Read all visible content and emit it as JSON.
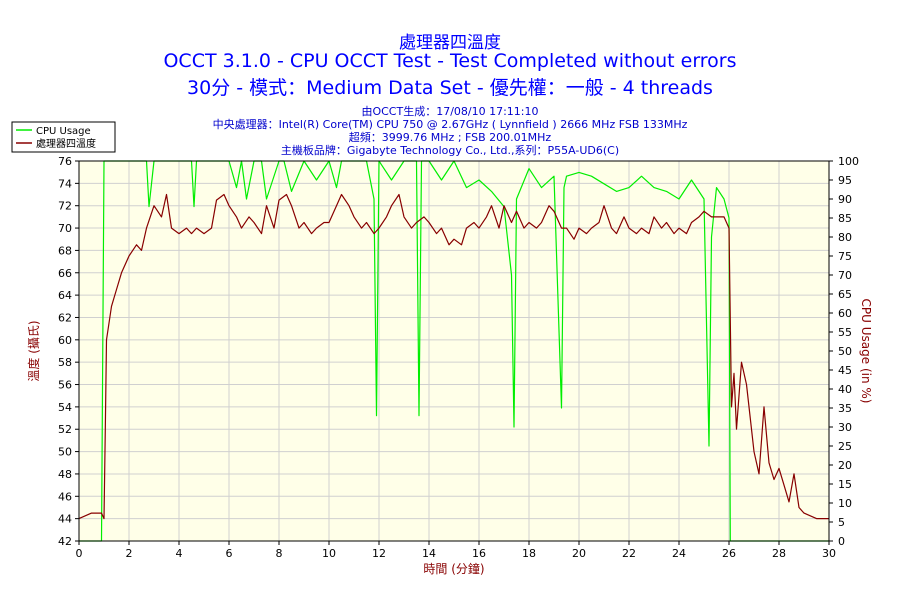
{
  "header": {
    "title1": "處理器四溫度",
    "title2": "OCCT 3.1.0 - CPU OCCT Test - Test Completed without errors",
    "title3": "30分 - 模式：Medium Data Set - 優先權：一般 - 4 threads",
    "meta": [
      "由OCCT生成：17/08/10 17:11:10",
      "中央處理器：Intel(R) Core(TM) CPU 750 @ 2.67GHz ( Lynnfield ) 2666 MHz FSB 133MHz",
      "超頻：3999.76 MHz ; FSB 200.01MHz",
      "主機板品牌：Gigabyte Technology Co., Ltd.,系列：P55A-UD6(C)"
    ]
  },
  "colors": {
    "cpu_usage": "#00ee00",
    "temperature": "#880000",
    "plot_bg": "#ffffe8",
    "grid": "#d0d0d0"
  },
  "chart_data": {
    "type": "line",
    "xlabel": "時間 (分鐘)",
    "ylabel": "溫度 (攝氏)",
    "y2label": "CPU Usage (in %)",
    "xlim": [
      0,
      30
    ],
    "ylim": [
      42,
      76
    ],
    "y2lim": [
      0,
      100
    ],
    "xticks": [
      0,
      2,
      4,
      6,
      8,
      10,
      12,
      14,
      16,
      18,
      20,
      22,
      24,
      26,
      28,
      30
    ],
    "yticks": [
      42,
      44,
      46,
      48,
      50,
      52,
      54,
      56,
      58,
      60,
      62,
      64,
      66,
      68,
      70,
      72,
      74,
      76
    ],
    "y2ticks": [
      0,
      5,
      10,
      15,
      20,
      25,
      30,
      35,
      40,
      45,
      50,
      55,
      60,
      65,
      70,
      75,
      80,
      85,
      90,
      95,
      100
    ],
    "grid": true,
    "legend": "top-left",
    "series": [
      {
        "name": "CPU Usage",
        "axis": "right",
        "color": "#00ee00",
        "x": [
          0,
          0.9,
          1.0,
          1.1,
          1.2,
          2.0,
          2.7,
          2.8,
          3.0,
          3.5,
          4.0,
          4.5,
          4.6,
          4.7,
          5.0,
          5.5,
          6.0,
          6.3,
          6.5,
          6.7,
          7.0,
          7.3,
          7.5,
          8.0,
          8.2,
          8.5,
          9.0,
          9.5,
          10.0,
          10.3,
          10.5,
          11.0,
          11.5,
          11.8,
          11.9,
          12.0,
          12.5,
          13.0,
          13.5,
          13.6,
          13.7,
          14.0,
          14.5,
          15.0,
          15.5,
          16.0,
          16.5,
          17.0,
          17.3,
          17.4,
          17.5,
          18.0,
          18.5,
          19.0,
          19.3,
          19.4,
          19.5,
          20.0,
          20.5,
          21.0,
          21.5,
          22.0,
          22.5,
          23.0,
          23.5,
          24.0,
          24.5,
          25.0,
          25.2,
          25.3,
          25.5,
          25.8,
          26.0,
          26.05,
          26.2,
          27.0,
          28.0,
          29.0,
          30.0
        ],
        "values": [
          0,
          0,
          100,
          100,
          100,
          100,
          100,
          88,
          100,
          100,
          100,
          100,
          88,
          100,
          100,
          100,
          100,
          93,
          100,
          90,
          100,
          100,
          90,
          100,
          100,
          92,
          100,
          95,
          100,
          93,
          100,
          100,
          100,
          90,
          33,
          100,
          95,
          100,
          100,
          33,
          100,
          100,
          95,
          100,
          93,
          95,
          92,
          88,
          70,
          30,
          90,
          98,
          93,
          96,
          35,
          93,
          96,
          97,
          96,
          94,
          92,
          93,
          96,
          93,
          92,
          90,
          95,
          90,
          25,
          80,
          93,
          90,
          85,
          0,
          0,
          0,
          0,
          0,
          0
        ]
      },
      {
        "name": "處理器四溫度",
        "axis": "left",
        "color": "#880000",
        "x": [
          0,
          0.5,
          0.9,
          1.0,
          1.05,
          1.1,
          1.3,
          1.5,
          1.7,
          2.0,
          2.3,
          2.5,
          2.7,
          3.0,
          3.3,
          3.5,
          3.7,
          4.0,
          4.3,
          4.5,
          4.7,
          5.0,
          5.3,
          5.5,
          5.8,
          6.0,
          6.3,
          6.5,
          6.8,
          7.0,
          7.3,
          7.5,
          7.8,
          8.0,
          8.3,
          8.5,
          8.8,
          9.0,
          9.3,
          9.5,
          9.8,
          10.0,
          10.3,
          10.5,
          10.8,
          11.0,
          11.3,
          11.5,
          11.8,
          12.0,
          12.3,
          12.5,
          12.8,
          13.0,
          13.3,
          13.5,
          13.8,
          14.0,
          14.3,
          14.5,
          14.8,
          15.0,
          15.3,
          15.5,
          15.8,
          16.0,
          16.3,
          16.5,
          16.8,
          17.0,
          17.3,
          17.5,
          17.8,
          18.0,
          18.3,
          18.5,
          18.8,
          19.0,
          19.3,
          19.5,
          19.8,
          20.0,
          20.3,
          20.5,
          20.8,
          21.0,
          21.3,
          21.5,
          21.8,
          22.0,
          22.3,
          22.5,
          22.8,
          23.0,
          23.3,
          23.5,
          23.8,
          24.0,
          24.3,
          24.5,
          24.8,
          25.0,
          25.3,
          25.5,
          25.8,
          26.0,
          26.1,
          26.2,
          26.3,
          26.5,
          26.7,
          26.9,
          27.0,
          27.2,
          27.4,
          27.6,
          27.8,
          28.0,
          28.2,
          28.4,
          28.6,
          28.8,
          29.0,
          29.5,
          30.0
        ],
        "values": [
          44,
          44.5,
          44.5,
          44,
          52,
          60,
          63,
          64.5,
          66,
          67.5,
          68.5,
          68,
          70,
          72,
          71,
          73,
          70,
          69.5,
          70,
          69.5,
          70,
          69.5,
          70,
          72.5,
          73,
          72,
          71,
          70,
          71,
          70.5,
          69.5,
          72,
          70,
          72.5,
          73,
          72,
          70,
          70.5,
          69.5,
          70,
          70.5,
          70.5,
          72,
          73,
          72,
          71,
          70,
          70.5,
          69.5,
          70,
          71,
          72,
          73,
          71,
          70,
          70.5,
          71,
          70.5,
          69.5,
          70,
          68.5,
          69,
          68.5,
          70,
          70.5,
          70,
          71,
          72,
          70,
          72,
          70.5,
          71.5,
          70,
          70.5,
          70,
          70.5,
          72,
          71.5,
          70,
          70,
          69,
          70,
          69.5,
          70,
          70.5,
          72,
          70,
          69.5,
          71,
          70,
          69.5,
          70,
          69.5,
          71,
          70,
          70.5,
          69.5,
          70,
          69.5,
          70.5,
          71,
          71.5,
          71,
          71,
          71,
          70,
          54,
          57,
          52,
          58,
          56,
          52,
          50,
          48,
          54,
          49,
          47.5,
          48.5,
          47,
          45.5,
          48,
          45,
          44.5,
          44,
          44
        ]
      }
    ]
  }
}
